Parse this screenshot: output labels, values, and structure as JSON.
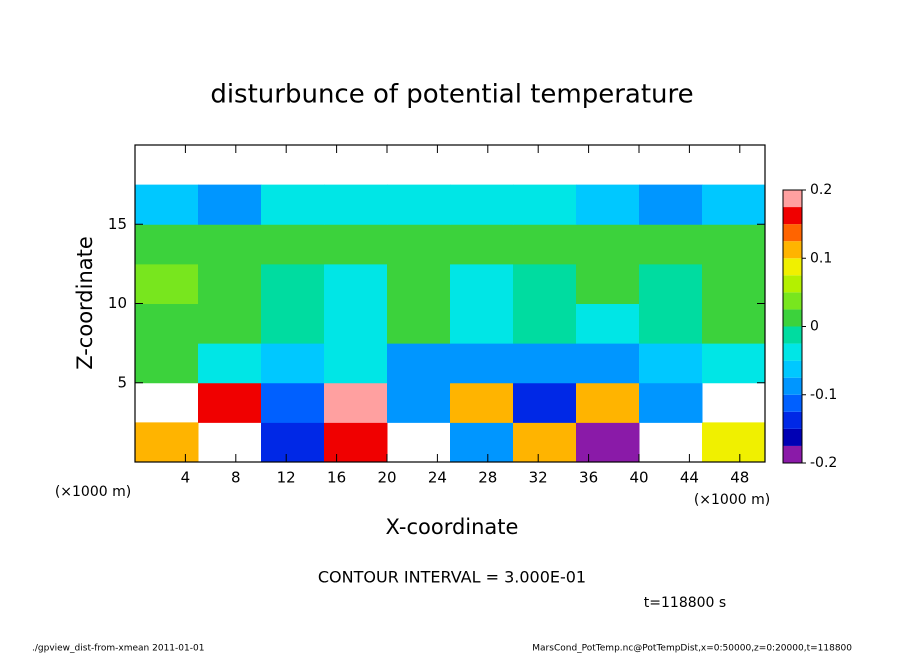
{
  "chart_data": {
    "type": "heatmap",
    "title": "disturbunce of potential temperature",
    "x_label": "X-coordinate",
    "y_label": "Z-coordinate",
    "x_unit_label": "(×1000 m)",
    "y_unit_label": "(×1000 m)",
    "annotation": "CONTOUR INTERVAL = 3.000E-01",
    "time_label": "t=118800 s",
    "footer_left": "./gpview_dist-from-xmean  2011-01-01",
    "footer_right": "MarsCond_PotTemp.nc@PotTempDist,x=0:50000,z=0:20000,t=118800",
    "xlim": [
      0,
      50
    ],
    "ylim": [
      0,
      20
    ],
    "xticks": [
      4,
      8,
      12,
      16,
      20,
      24,
      28,
      32,
      36,
      40,
      44,
      48
    ],
    "yticks": [
      5,
      10,
      15
    ],
    "x_edges": [
      0,
      5,
      10,
      15,
      20,
      25,
      30,
      35,
      40,
      45,
      50
    ],
    "y_edges": [
      0,
      2.5,
      5,
      7.5,
      10,
      12.5,
      15,
      17.5,
      20
    ],
    "z": [
      [
        0.1,
        null,
        -0.15,
        0.15,
        null,
        -0.1,
        0.12,
        -0.18,
        null,
        0.08
      ],
      [
        null,
        0.15,
        -0.12,
        0.2,
        -0.1,
        0.12,
        -0.15,
        0.1,
        -0.08,
        null
      ],
      [
        0.01,
        -0.03,
        -0.06,
        -0.05,
        -0.08,
        -0.1,
        -0.09,
        -0.1,
        -0.06,
        -0.05
      ],
      [
        0.02,
        0.01,
        -0.02,
        -0.04,
        0.005,
        -0.04,
        -0.02,
        -0.03,
        -0.02,
        0.001
      ],
      [
        0.03,
        0.02,
        -0.01,
        -0.03,
        0.01,
        -0.03,
        -0.01,
        0.005,
        -0.01,
        0.005
      ],
      [
        0.02,
        0.01,
        0.005,
        0.001,
        0.005,
        0.001,
        0.005,
        0.005,
        0.001,
        0.005
      ],
      [
        -0.07,
        -0.08,
        -0.05,
        -0.04,
        -0.04,
        -0.04,
        -0.05,
        -0.06,
        -0.08,
        -0.07
      ],
      [
        null,
        null,
        null,
        null,
        null,
        null,
        null,
        null,
        null,
        null
      ]
    ],
    "colorbar": {
      "levels": [
        -0.2,
        -0.175,
        -0.15,
        -0.125,
        -0.1,
        -0.075,
        -0.05,
        -0.025,
        0,
        0.025,
        0.05,
        0.075,
        0.1,
        0.125,
        0.15,
        0.175,
        0.2
      ],
      "colors": [
        "#8a1aa8",
        "#0000b4",
        "#0028e6",
        "#0060ff",
        "#0096ff",
        "#00c8ff",
        "#00e6e6",
        "#00dca0",
        "#3cd23c",
        "#78e61e",
        "#b4f000",
        "#f0f000",
        "#ffb400",
        "#ff6400",
        "#f00000",
        "#ffa0a0"
      ],
      "ticks": [
        -0.2,
        -0.1,
        0,
        0.1,
        0.2
      ]
    }
  }
}
